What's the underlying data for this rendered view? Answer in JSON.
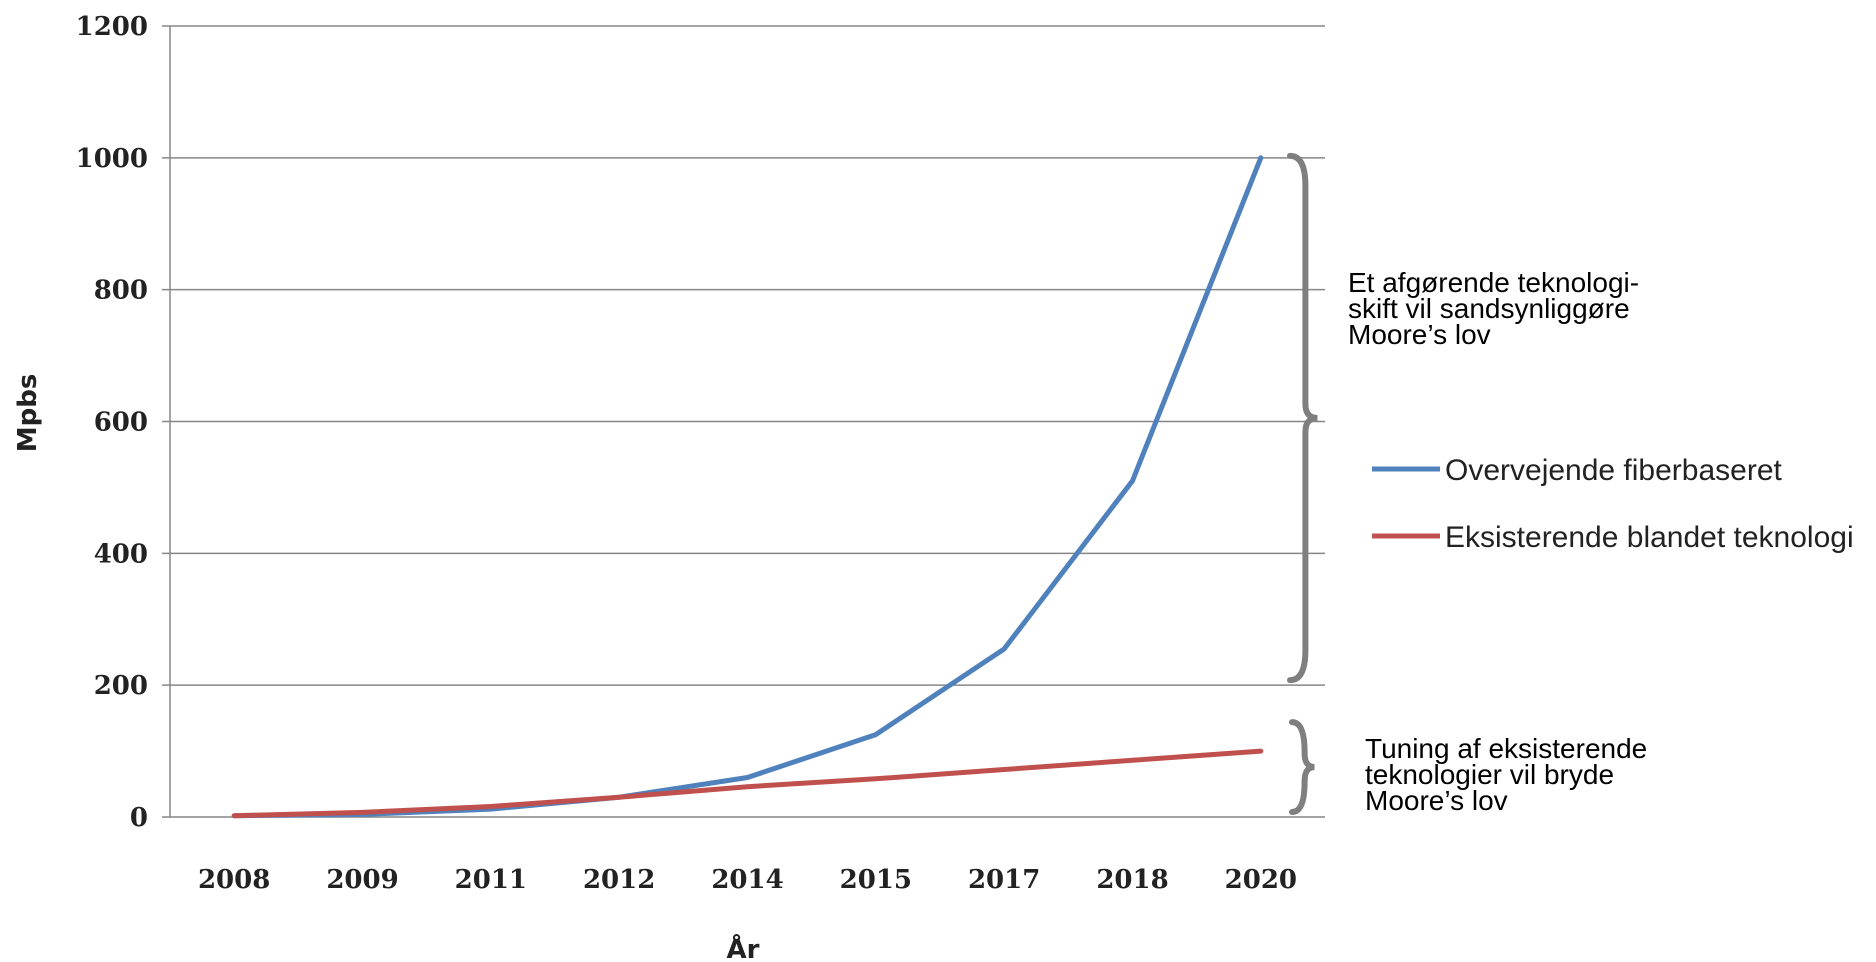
{
  "chart_data": {
    "type": "line",
    "categories": [
      "2008",
      "2009",
      "2011",
      "2012",
      "2014",
      "2015",
      "2017",
      "2018",
      "2020"
    ],
    "series": [
      {
        "name": "Overvejende fiberbaseret",
        "color": "#4f81bd",
        "values": [
          2,
          4,
          12,
          30,
          60,
          125,
          255,
          510,
          1000
        ]
      },
      {
        "name": "Eksisterende blandet teknologi",
        "color": "#c0504d",
        "values": [
          2,
          7,
          16,
          30,
          46,
          58,
          72,
          86,
          100
        ]
      }
    ],
    "xlabel": "År",
    "ylabel": "Mpbs",
    "ylim": [
      0,
      1200
    ],
    "yticks": [
      0,
      200,
      400,
      600,
      800,
      1000,
      1200
    ],
    "grid": true,
    "legend": "right",
    "brace_color": "#7f7f7f",
    "annotations": [
      {
        "text": "Et afgørende teknologi-\nskift vil sandsynliggøre\nMoore’s lov",
        "brace_from": 0,
        "brace_to": 1000
      },
      {
        "text": "Tuning af eksisterende\nteknologier vil bryde\nMoore’s lov",
        "brace_from": 0,
        "brace_to": 150
      }
    ]
  }
}
